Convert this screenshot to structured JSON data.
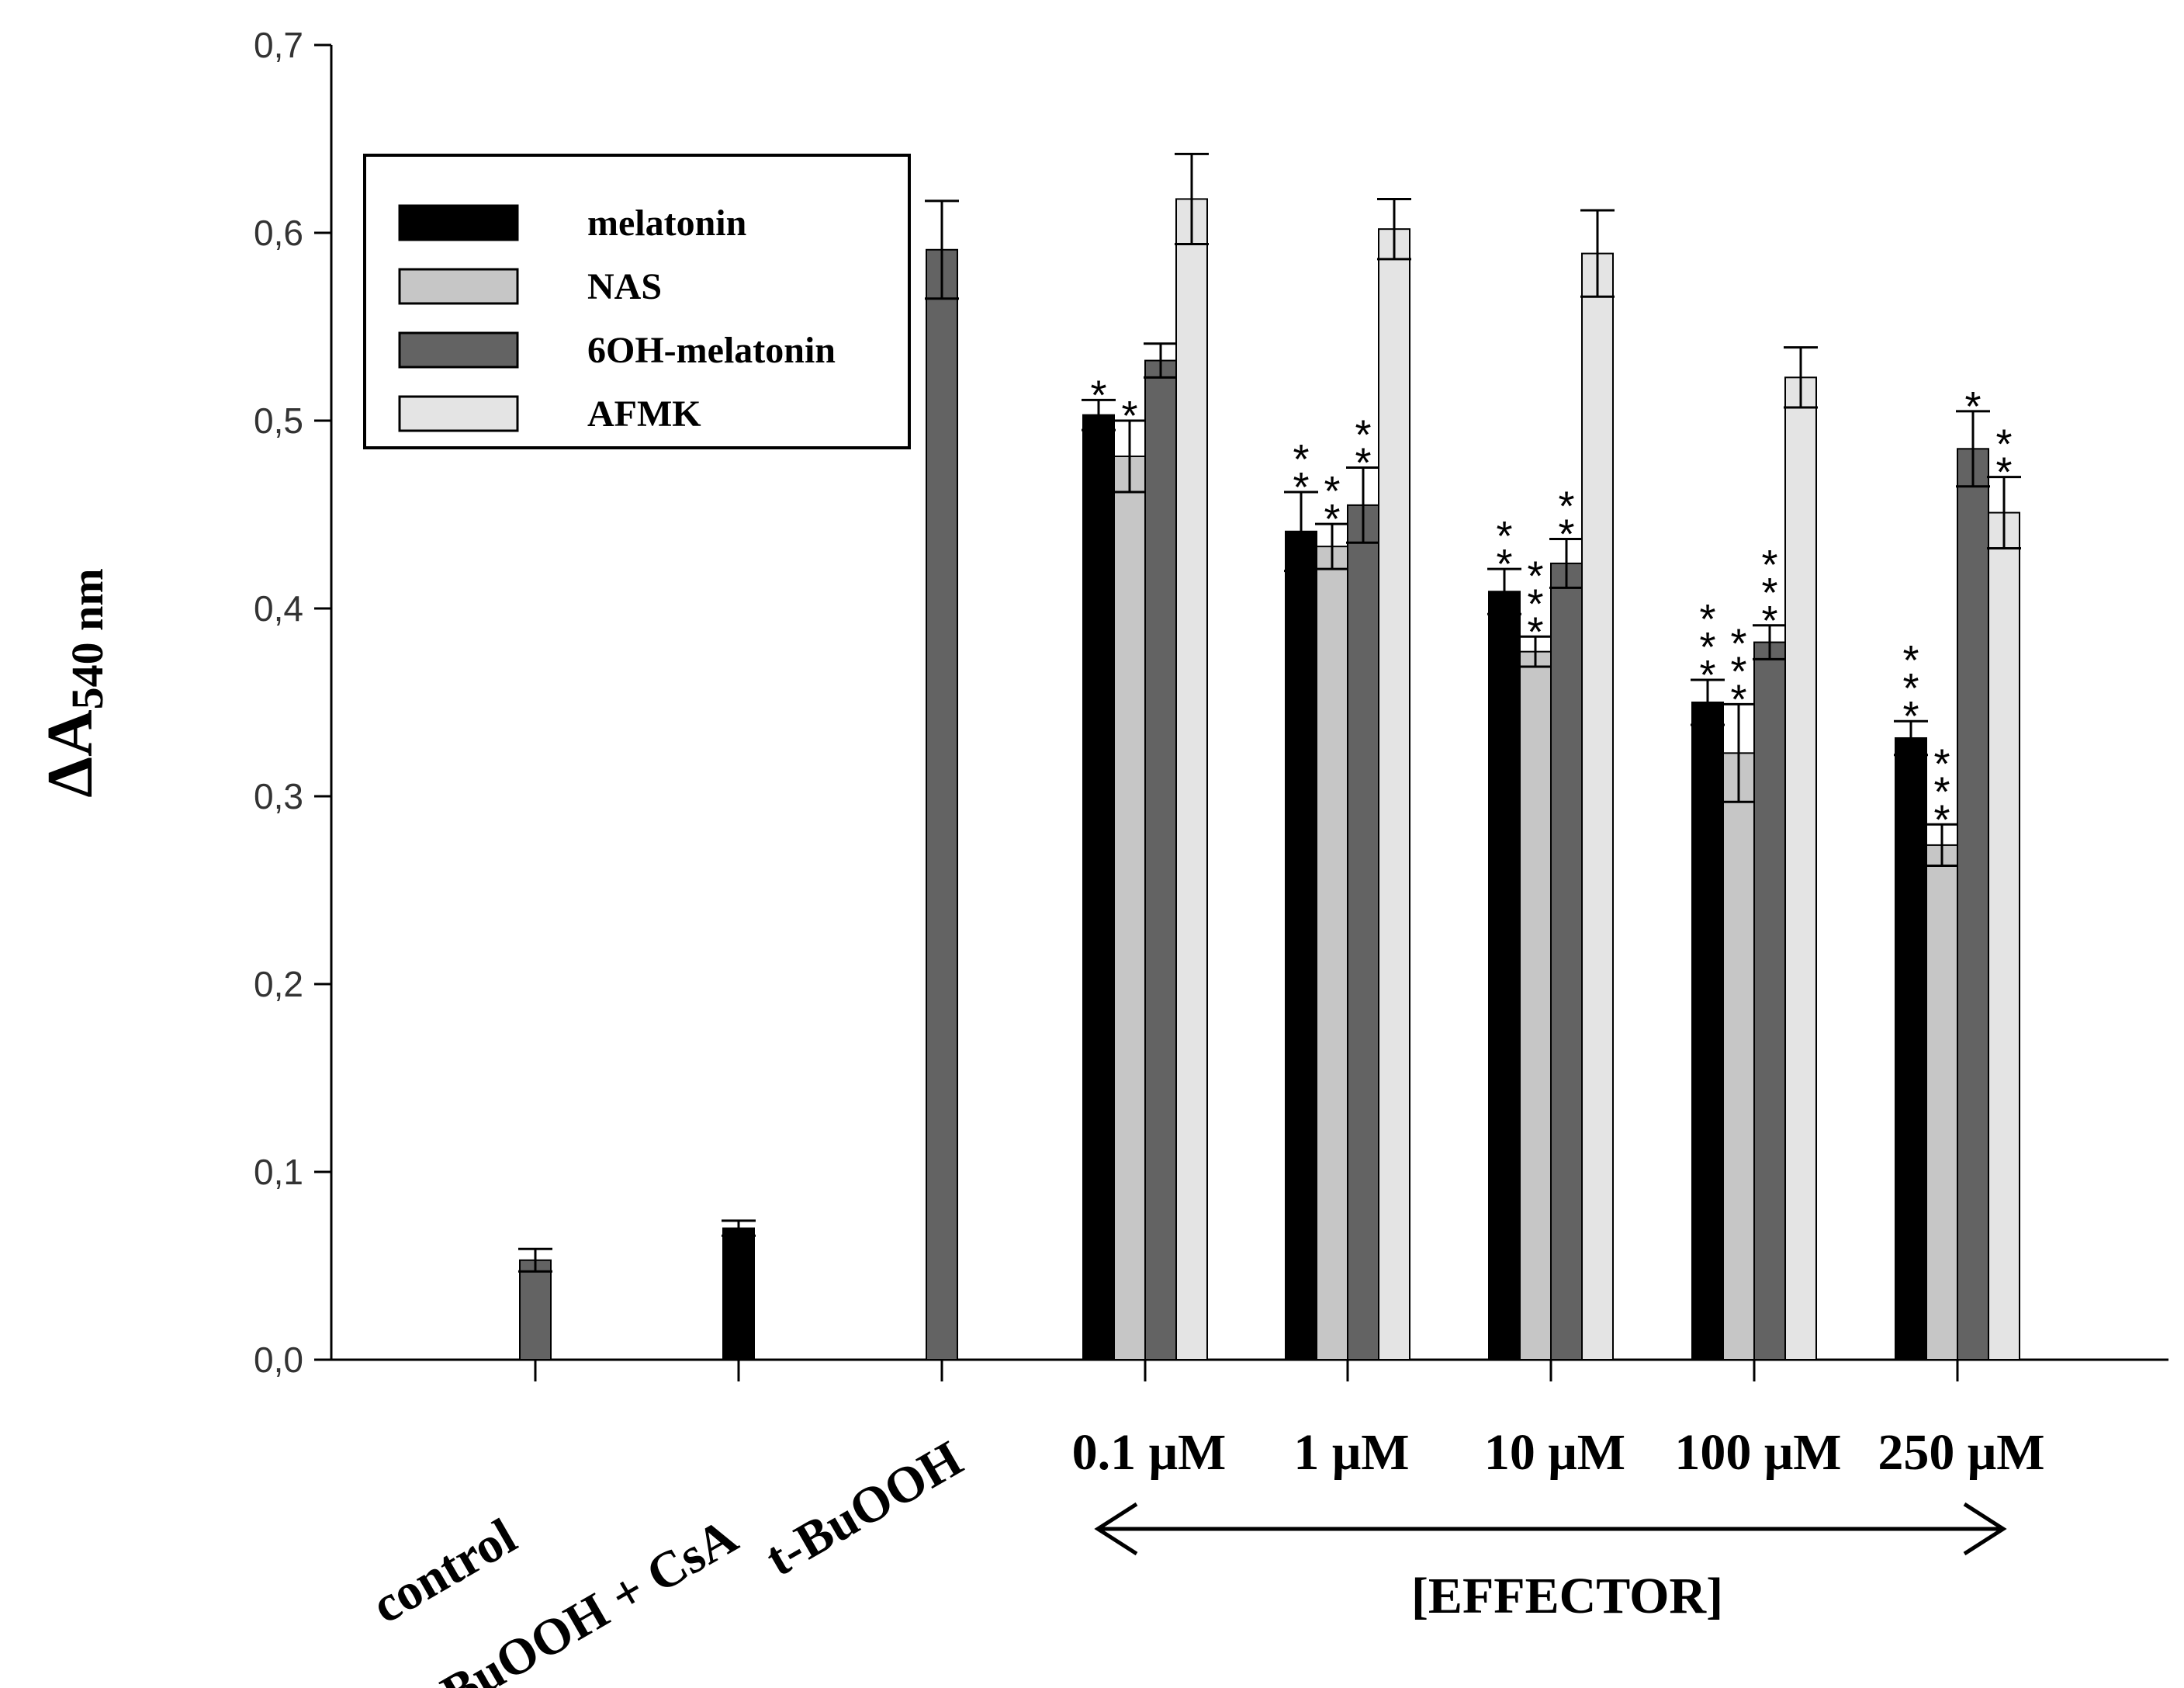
{
  "colors": {
    "melatonin": "#000000",
    "NAS": "#c6c6c6",
    "6OH-melatonin": "#636363",
    "AFMK": "#e4e4e4"
  },
  "legend": {
    "items": [
      {
        "key": "melatonin",
        "label": "melatonin"
      },
      {
        "key": "NAS",
        "label": "NAS"
      },
      {
        "key": "6OH-melatonin",
        "label": "6OH-melatonin"
      },
      {
        "key": "AFMK",
        "label": "AFMK"
      }
    ]
  },
  "effector_label": "[EFFECTOR]",
  "chart_data": {
    "type": "bar",
    "title": "",
    "xlabel": "",
    "ylabel": "ΔA",
    "ylabel_subscript": "540 nm",
    "ylim": [
      0,
      0.7
    ],
    "yticks": [
      {
        "value": 0.0,
        "label": "0,0"
      },
      {
        "value": 0.1,
        "label": "0,1"
      },
      {
        "value": 0.2,
        "label": "0,2"
      },
      {
        "value": 0.3,
        "label": "0,3"
      },
      {
        "value": 0.4,
        "label": "0,4"
      },
      {
        "value": 0.5,
        "label": "0,5"
      },
      {
        "value": 0.6,
        "label": "0,6"
      },
      {
        "value": 0.7,
        "label": "0,7"
      }
    ],
    "categories": [
      "control",
      "t-BuOOH + CsA",
      "t-BuOOH",
      "0.1 μM",
      "1 μM",
      "10 μM",
      "100 μM",
      "250 μM"
    ],
    "series": [
      {
        "name": "melatonin",
        "values": [
          null,
          0.07,
          null,
          0.503,
          0.441,
          0.409,
          0.35,
          0.331
        ],
        "errors": [
          null,
          0.004,
          null,
          0.008,
          0.021,
          0.012,
          0.012,
          0.009
        ],
        "significance": [
          "",
          "",
          "",
          "*",
          "**",
          "**",
          "***",
          "***"
        ]
      },
      {
        "name": "NAS",
        "values": [
          null,
          null,
          null,
          0.481,
          0.433,
          0.377,
          0.323,
          0.274
        ],
        "errors": [
          null,
          null,
          null,
          0.019,
          0.012,
          0.008,
          0.026,
          0.011
        ],
        "significance": [
          "",
          "",
          "",
          "*",
          "**",
          "***",
          "***",
          "***"
        ]
      },
      {
        "name": "6OH-melatonin",
        "values": [
          0.053,
          null,
          0.591,
          0.532,
          0.455,
          0.424,
          0.382,
          0.485
        ],
        "errors": [
          0.006,
          null,
          0.026,
          0.009,
          0.02,
          0.013,
          0.009,
          0.02
        ],
        "significance": [
          "",
          "",
          "",
          "",
          "**",
          "**",
          "***",
          "*"
        ]
      },
      {
        "name": "AFMK",
        "values": [
          null,
          null,
          null,
          0.618,
          0.602,
          0.589,
          0.523,
          0.451
        ],
        "errors": [
          null,
          null,
          null,
          0.024,
          0.016,
          0.023,
          0.016,
          0.019
        ],
        "significance": [
          "",
          "",
          "",
          "",
          "",
          "",
          "",
          "**"
        ]
      }
    ]
  }
}
